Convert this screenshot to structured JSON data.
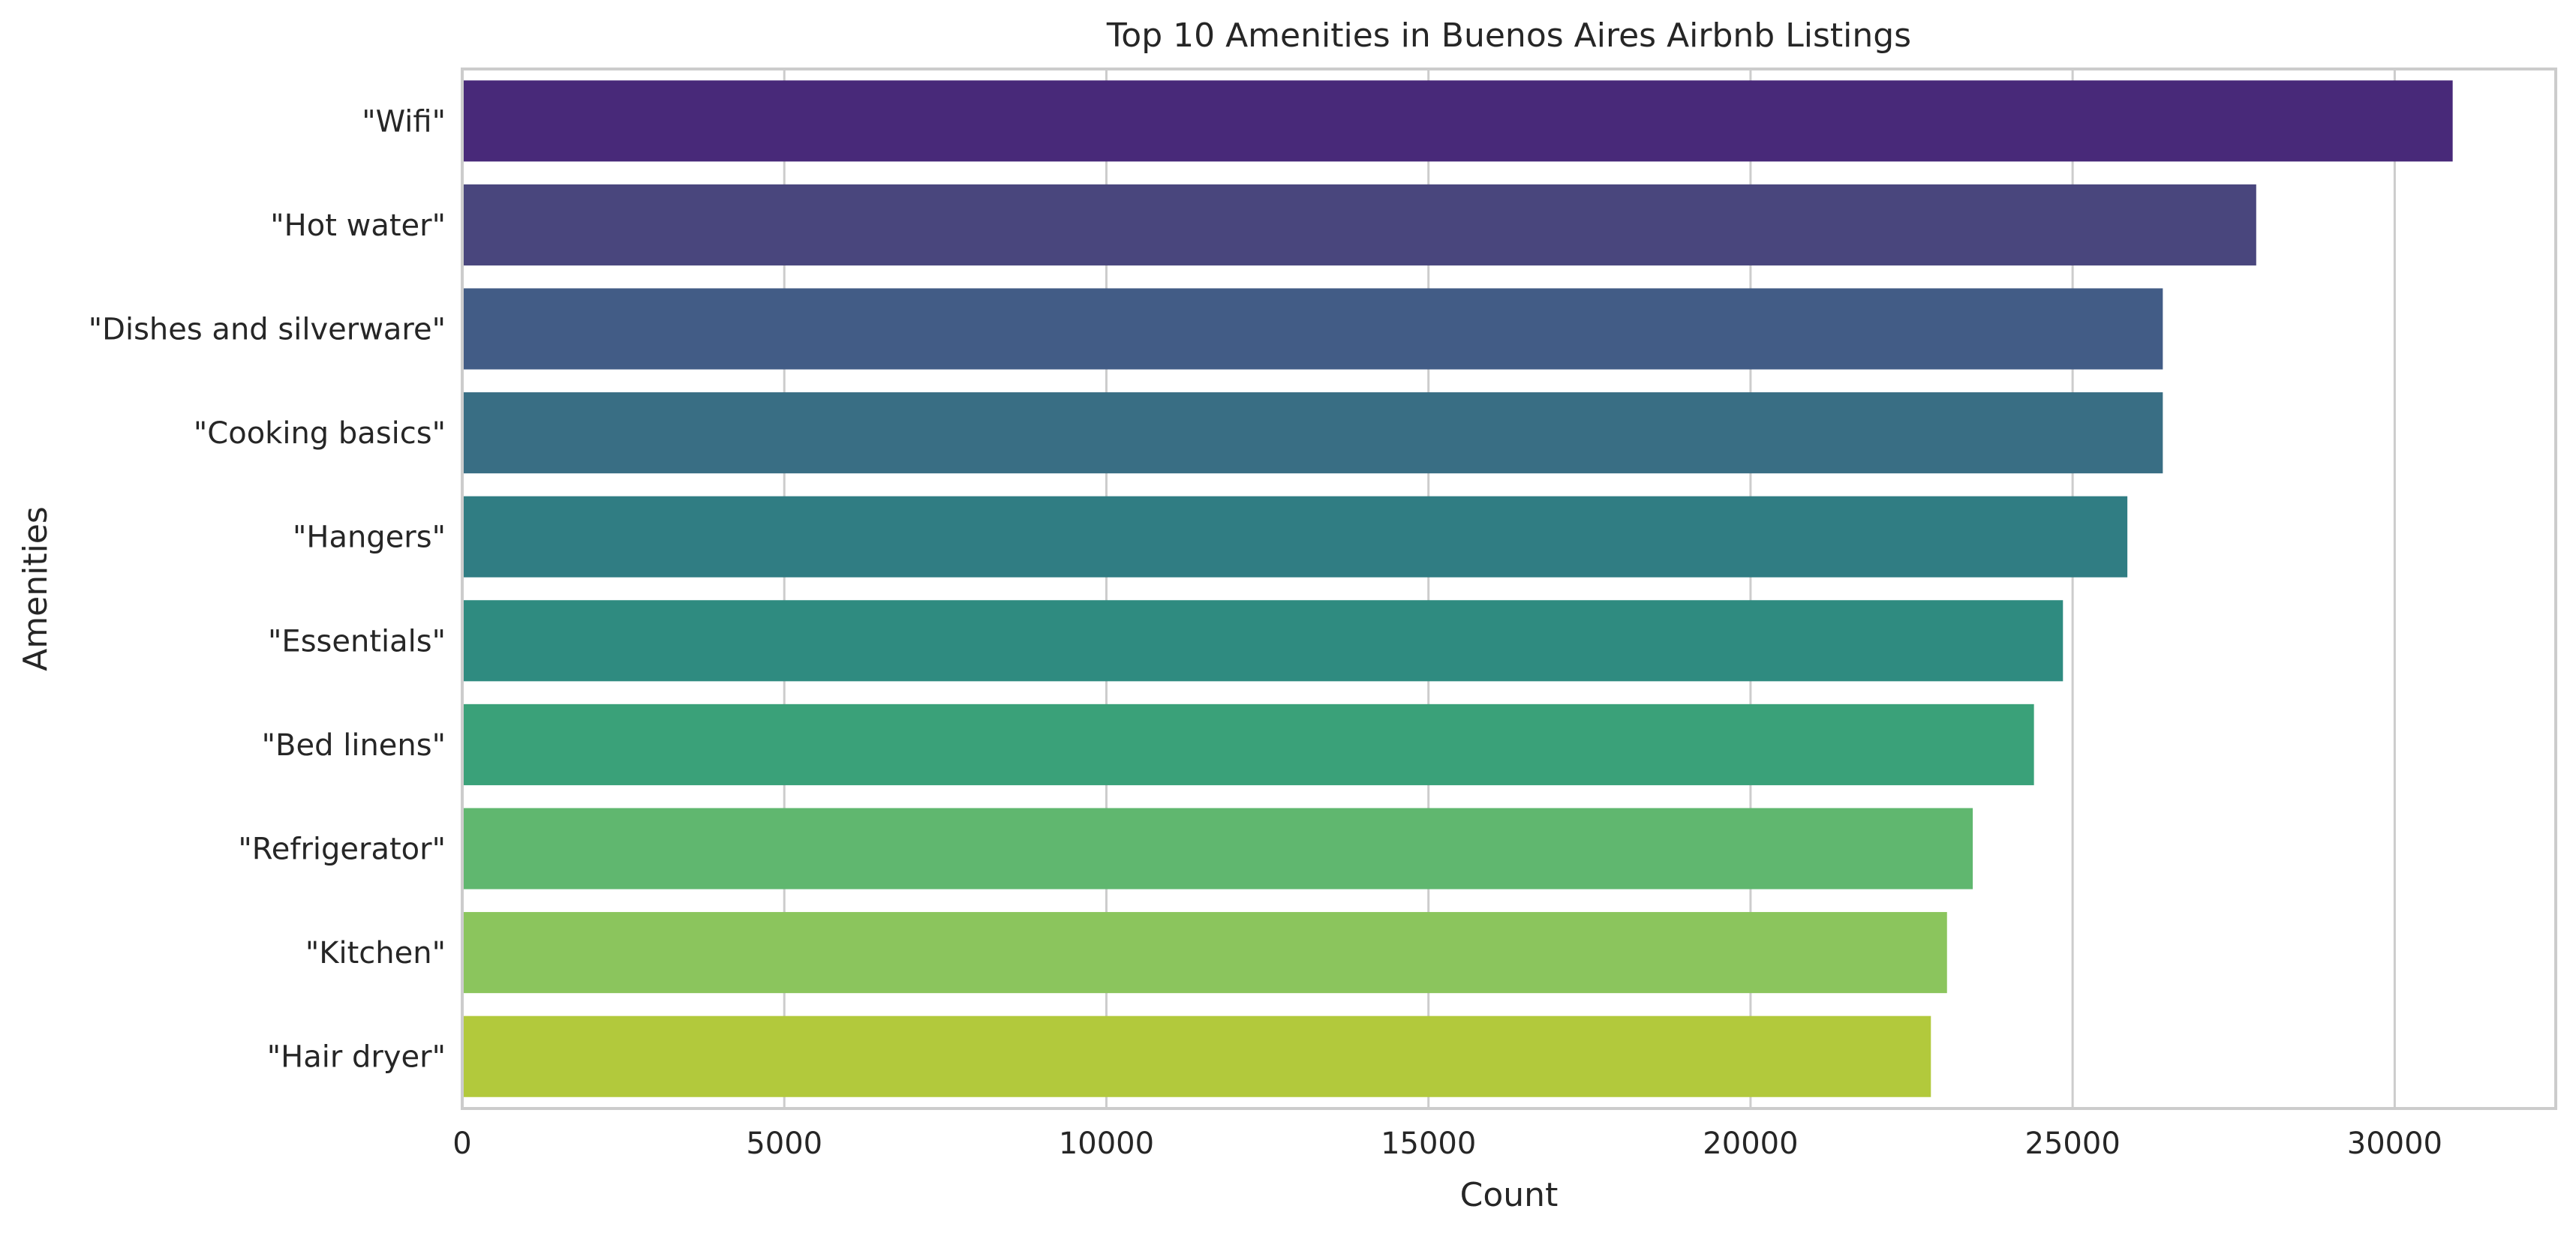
{
  "chart_data": {
    "type": "bar",
    "orientation": "horizontal",
    "title": "Top 10 Amenities in Buenos Aires Airbnb Listings",
    "xlabel": "Count",
    "ylabel": "Amenities",
    "categories": [
      "\"Wifi\"",
      "\"Hot water\"",
      "\"Dishes and silverware\"",
      "\"Cooking basics\"",
      "\"Hangers\"",
      "\"Essentials\"",
      "\"Bed linens\"",
      "\"Refrigerator\"",
      "\"Kitchen\"",
      "\"Hair dryer\""
    ],
    "values": [
      30900,
      27850,
      26400,
      26400,
      25850,
      24850,
      24400,
      23450,
      23050,
      22800
    ],
    "colors": [
      "#482979",
      "#49467d",
      "#425c86",
      "#396e84",
      "#307d83",
      "#2f8b80",
      "#3aa179",
      "#60b76f",
      "#8bc55d",
      "#b2c93c"
    ],
    "xlim": [
      0,
      32500
    ],
    "xticks": [
      0,
      5000,
      10000,
      15000,
      20000,
      25000,
      30000
    ],
    "grid": "x",
    "legend": "none"
  }
}
